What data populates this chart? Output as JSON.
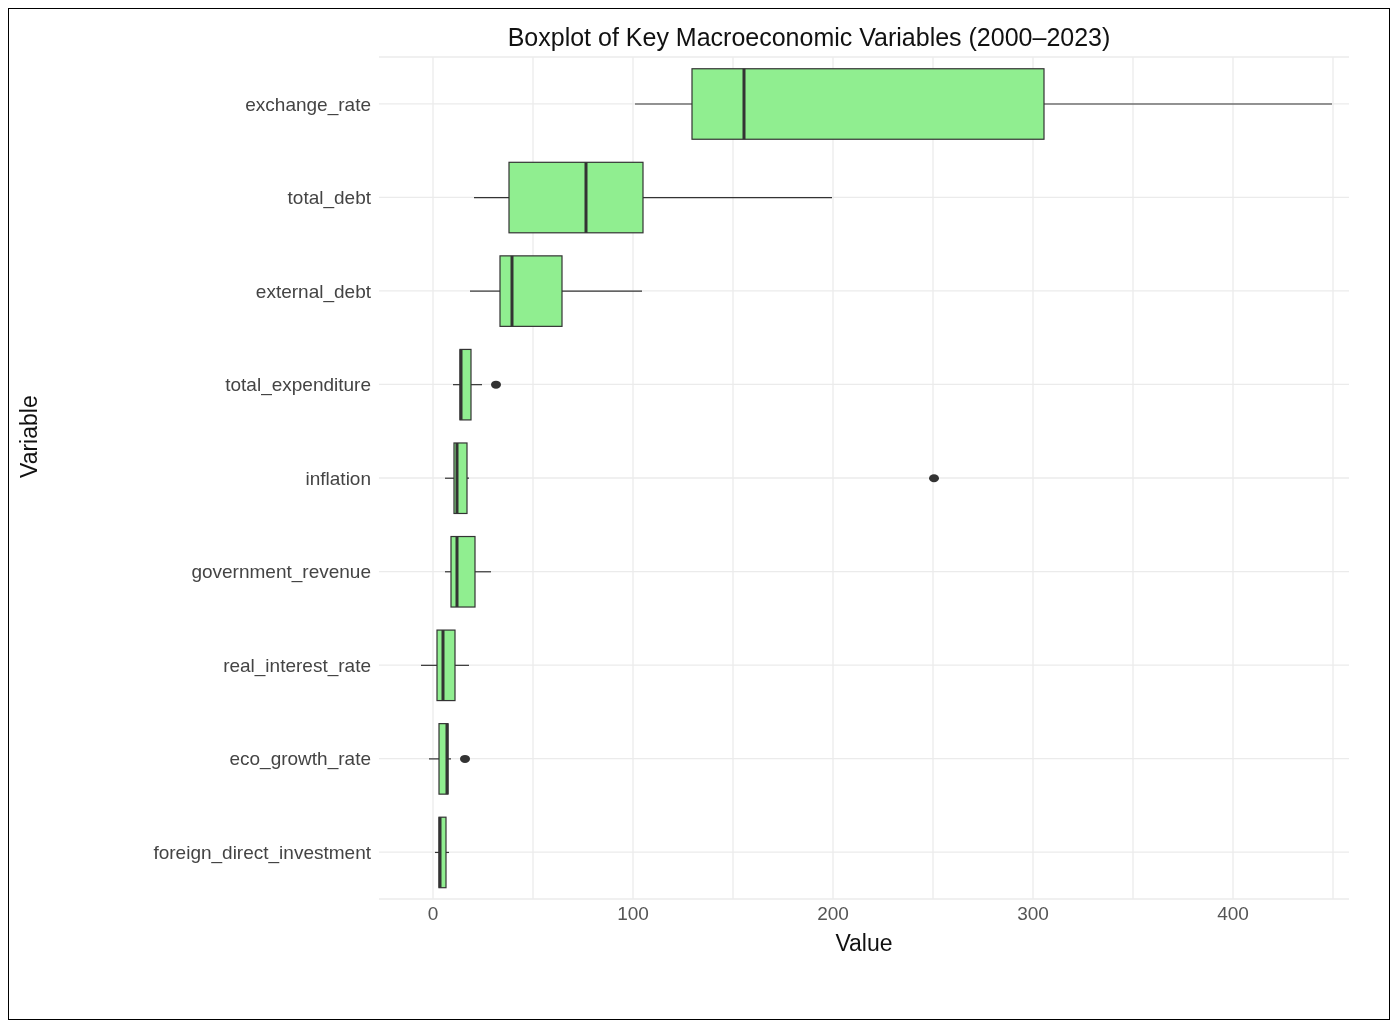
{
  "chart_data": {
    "type": "box",
    "title": "Boxplot of Key Macroeconomic Variables (2000–2023)",
    "xlabel": "Value",
    "ylabel": "Variable",
    "orientation": "horizontal",
    "categories": [
      "exchange_rate",
      "total_debt",
      "external_debt",
      "total_expenditure",
      "inflation",
      "government_revenue",
      "real_interest_rate",
      "eco_growth_rate",
      "foreign_direct_investment"
    ],
    "boxes": [
      {
        "low": 101,
        "q1": 129.5,
        "median": 155.5,
        "q3": 305.5,
        "high": 449.5
      },
      {
        "low": 20.5,
        "q1": 38,
        "median": 76.5,
        "q3": 105,
        "high": 199.5
      },
      {
        "low": 18.5,
        "q1": 33.5,
        "median": 39.5,
        "q3": 64.5,
        "high": 104.5
      },
      {
        "low": 10,
        "q1": 13.5,
        "median": 14,
        "q3": 19,
        "high": 24.5,
        "outliers": [
          31.5
        ]
      },
      {
        "low": 6,
        "q1": 10.5,
        "median": 12,
        "q3": 17,
        "high": 18,
        "outliers": [
          250.5
        ]
      },
      {
        "low": 6,
        "q1": 9,
        "median": 12,
        "q3": 21,
        "high": 29
      },
      {
        "low": -6,
        "q1": 2,
        "median": 5,
        "q3": 11,
        "high": 18
      },
      {
        "low": -2,
        "q1": 3,
        "median": 7,
        "q3": 7.5,
        "high": 9,
        "outliers": [
          16
        ]
      },
      {
        "low": 1,
        "q1": 3,
        "median": 3.5,
        "q3": 6.5,
        "high": 8
      }
    ],
    "color": "#90ee90",
    "xlim": [
      -27,
      458
    ],
    "xticks": [
      0,
      100,
      200,
      300,
      400
    ],
    "grid": true
  }
}
